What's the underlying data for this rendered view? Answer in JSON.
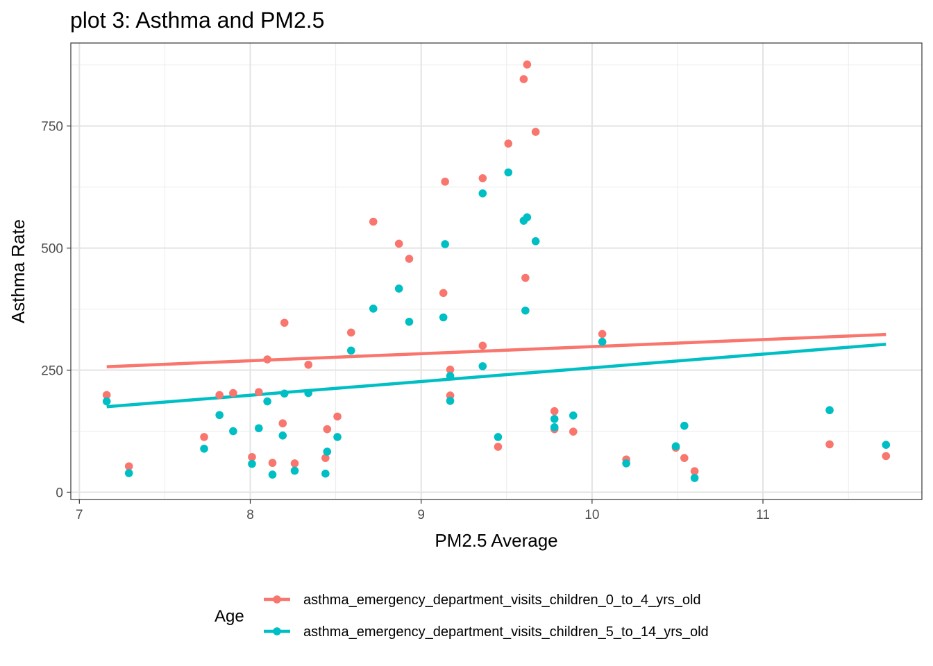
{
  "chart_data": {
    "type": "scatter",
    "title": "plot 3: Asthma and PM2.5",
    "xlabel": "PM2.5 Average",
    "ylabel": "Asthma Rate",
    "xlim": [
      6.95,
      11.93
    ],
    "ylim": [
      -15,
      920
    ],
    "x_ticks": [
      7,
      8,
      9,
      10,
      11
    ],
    "y_ticks": [
      0,
      250,
      500,
      750
    ],
    "grid": true,
    "legend_title": "Age",
    "legend_position": "bottom",
    "series": [
      {
        "name": "asthma_emergency_department_visits_children_0_to_4_yrs_old",
        "color": "#F8766D",
        "points": [
          [
            7.16,
            199
          ],
          [
            7.29,
            53
          ],
          [
            7.73,
            113
          ],
          [
            7.82,
            199
          ],
          [
            7.9,
            203
          ],
          [
            8.01,
            72
          ],
          [
            8.05,
            205
          ],
          [
            8.1,
            272
          ],
          [
            8.13,
            60
          ],
          [
            8.19,
            141
          ],
          [
            8.2,
            347
          ],
          [
            8.26,
            59
          ],
          [
            8.34,
            261
          ],
          [
            8.44,
            70
          ],
          [
            8.45,
            129
          ],
          [
            8.51,
            155
          ],
          [
            8.59,
            327
          ],
          [
            8.72,
            554
          ],
          [
            8.87,
            509
          ],
          [
            8.93,
            478
          ],
          [
            9.13,
            408
          ],
          [
            9.14,
            636
          ],
          [
            9.17,
            251
          ],
          [
            9.17,
            198
          ],
          [
            9.36,
            643
          ],
          [
            9.36,
            300
          ],
          [
            9.45,
            93
          ],
          [
            9.51,
            714
          ],
          [
            9.6,
            846
          ],
          [
            9.61,
            439
          ],
          [
            9.62,
            876
          ],
          [
            9.67,
            738
          ],
          [
            9.78,
            166
          ],
          [
            9.78,
            129
          ],
          [
            9.89,
            124
          ],
          [
            10.06,
            324
          ],
          [
            10.2,
            67
          ],
          [
            10.49,
            91
          ],
          [
            10.54,
            70
          ],
          [
            10.6,
            43
          ],
          [
            11.39,
            98
          ],
          [
            11.72,
            74
          ]
        ],
        "trend": [
          [
            7.16,
            257
          ],
          [
            11.72,
            323
          ]
        ]
      },
      {
        "name": "asthma_emergency_department_visits_children_5_to_14_yrs_old",
        "color": "#00BFC4",
        "points": [
          [
            7.16,
            186
          ],
          [
            7.29,
            39
          ],
          [
            7.73,
            89
          ],
          [
            7.82,
            158
          ],
          [
            7.9,
            125
          ],
          [
            8.01,
            58
          ],
          [
            8.05,
            131
          ],
          [
            8.1,
            186
          ],
          [
            8.13,
            36
          ],
          [
            8.19,
            116
          ],
          [
            8.2,
            202
          ],
          [
            8.26,
            44
          ],
          [
            8.34,
            203
          ],
          [
            8.44,
            38
          ],
          [
            8.45,
            83
          ],
          [
            8.51,
            113
          ],
          [
            8.59,
            290
          ],
          [
            8.72,
            376
          ],
          [
            8.87,
            417
          ],
          [
            8.93,
            349
          ],
          [
            9.13,
            358
          ],
          [
            9.14,
            508
          ],
          [
            9.17,
            238
          ],
          [
            9.17,
            187
          ],
          [
            9.36,
            612
          ],
          [
            9.36,
            258
          ],
          [
            9.45,
            113
          ],
          [
            9.51,
            655
          ],
          [
            9.6,
            556
          ],
          [
            9.61,
            372
          ],
          [
            9.62,
            563
          ],
          [
            9.67,
            514
          ],
          [
            9.78,
            150
          ],
          [
            9.78,
            133
          ],
          [
            9.89,
            157
          ],
          [
            10.06,
            308
          ],
          [
            10.2,
            59
          ],
          [
            10.49,
            94
          ],
          [
            10.54,
            136
          ],
          [
            10.6,
            29
          ],
          [
            11.39,
            168
          ],
          [
            11.72,
            97
          ]
        ],
        "trend": [
          [
            7.16,
            175
          ],
          [
            11.72,
            303
          ]
        ]
      }
    ]
  }
}
